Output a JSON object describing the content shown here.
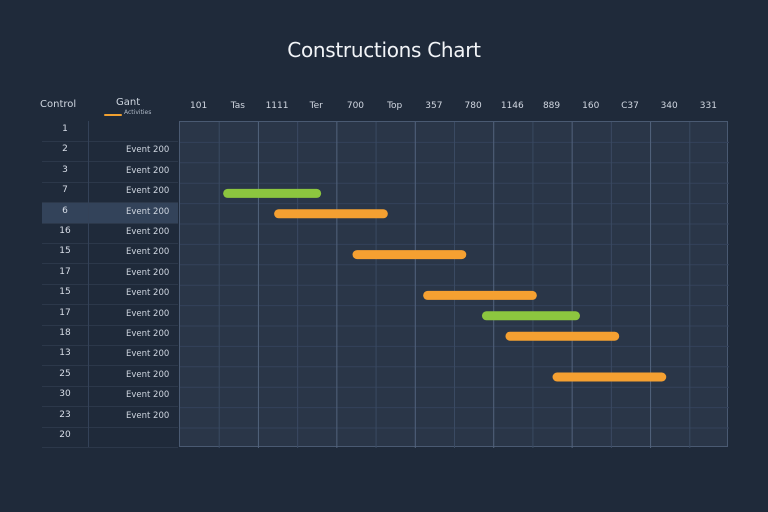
{
  "chart_data": {
    "type": "gantt",
    "title": "Constructions Chart",
    "header": {
      "control": "Control",
      "gant": "Gant",
      "legend": "Activities"
    },
    "columns": [
      "101",
      "Tas",
      "1111",
      "Ter",
      "700",
      "Top",
      "357",
      "780",
      "1146",
      "889",
      "160",
      "C37",
      "340",
      "331"
    ],
    "rows": [
      {
        "num": "1",
        "task": ""
      },
      {
        "num": "2",
        "task": "Event 200"
      },
      {
        "num": "3",
        "task": "Event 200"
      },
      {
        "num": "7",
        "task": "Event 200"
      },
      {
        "num": "6",
        "task": "Event 200",
        "selected": true
      },
      {
        "num": "16",
        "task": "Event 200"
      },
      {
        "num": "15",
        "task": "Event 200"
      },
      {
        "num": "17",
        "task": "Event 200"
      },
      {
        "num": "15",
        "task": "Event 200"
      },
      {
        "num": "17",
        "task": "Event 200"
      },
      {
        "num": "18",
        "task": "Event 200"
      },
      {
        "num": "13",
        "task": "Event 200"
      },
      {
        "num": "25",
        "task": "Event 200"
      },
      {
        "num": "30",
        "task": "Event 200"
      },
      {
        "num": "23",
        "task": "Event 200"
      },
      {
        "num": "20",
        "task": ""
      }
    ],
    "bars": [
      {
        "row": 3,
        "start": 1.1,
        "end": 3.6,
        "color": "#8cc63f"
      },
      {
        "row": 4,
        "start": 2.4,
        "end": 5.3,
        "color": "#f5a031"
      },
      {
        "row": 6,
        "start": 4.4,
        "end": 7.3,
        "color": "#f5a031"
      },
      {
        "row": 8,
        "start": 6.2,
        "end": 9.1,
        "color": "#f5a031"
      },
      {
        "row": 9,
        "start": 7.7,
        "end": 10.2,
        "color": "#8cc63f"
      },
      {
        "row": 10,
        "start": 8.3,
        "end": 11.2,
        "color": "#f5a031"
      },
      {
        "row": 12,
        "start": 9.5,
        "end": 12.4,
        "color": "#f5a031"
      }
    ],
    "colors": {
      "background": "#1f2a3a",
      "plot": "#2a3648",
      "orange": "#f5a031",
      "green": "#8cc63f"
    }
  }
}
